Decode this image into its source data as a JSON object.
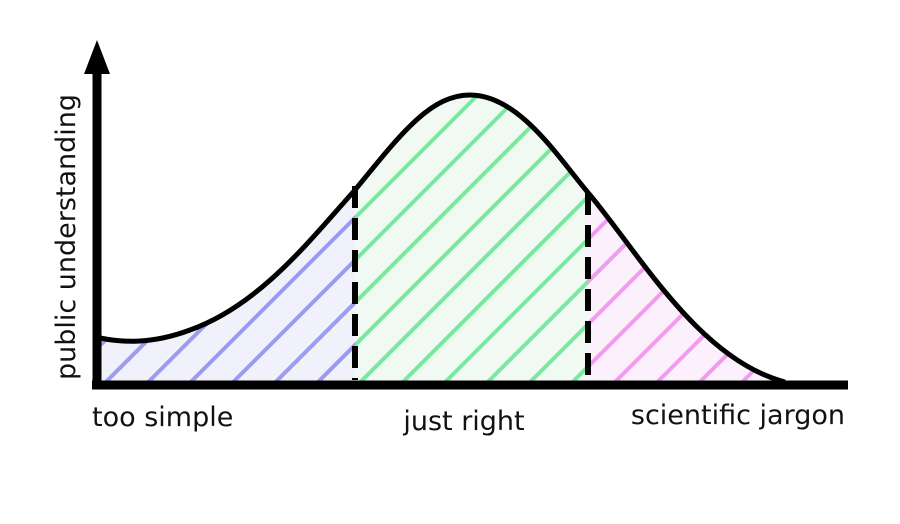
{
  "axis": {
    "y_label": "public understanding"
  },
  "regions": [
    {
      "label": "too simple"
    },
    {
      "label": "just right"
    },
    {
      "label": "scientific jargon"
    }
  ]
}
